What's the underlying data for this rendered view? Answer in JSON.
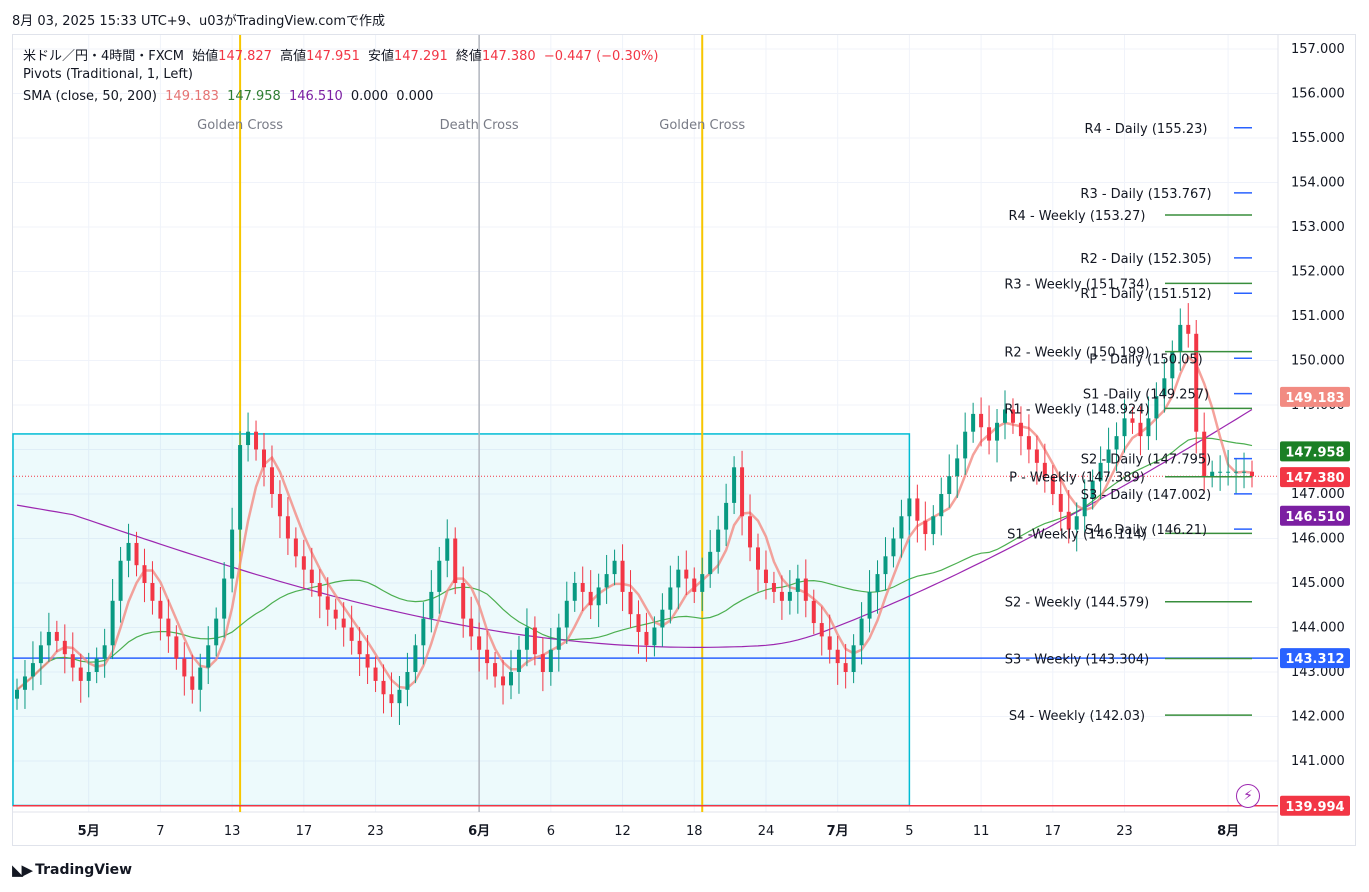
{
  "header": {
    "title": "8月 03, 2025 15:33 UTC+9、u03がTradingView.comで作成"
  },
  "legend": {
    "symbol": "米ドル／円・4時間・FXCM",
    "open_label": "始値",
    "open": "147.827",
    "high_label": "高値",
    "high": "147.951",
    "low_label": "安値",
    "low": "147.291",
    "close_label": "終値",
    "close": "147.380",
    "change": "−0.447 (−0.30%)",
    "pivots": "Pivots (Traditional, 1, Left)",
    "sma_label": "SMA (close, 50, 200)",
    "sma_vals": [
      "149.183",
      "147.958",
      "146.510",
      "0.000",
      "0.000"
    ]
  },
  "footer": {
    "logo": "TradingView"
  },
  "colors": {
    "up": "#089981",
    "down": "#f23645",
    "sma_fast": "#f28b82",
    "sma_mid": "#4caf50",
    "sma_slow": "#9c27b0",
    "daily_pivot": "#2962ff",
    "weekly_pivot": "#388e3c",
    "golden": "#f7c600",
    "death": "#b2b5be",
    "rect": "#00bcd4",
    "hline": "#2962ff",
    "bottom_line": "#f23645"
  },
  "chart_data": {
    "type": "candlestick",
    "ylim": [
      139.8,
      157.3
    ],
    "y_ticks": [
      "157.000",
      "156.000",
      "155.000",
      "154.000",
      "153.000",
      "152.000",
      "151.000",
      "150.000",
      "149.000",
      "148.000",
      "147.000",
      "146.000",
      "145.000",
      "144.000",
      "143.000",
      "142.000",
      "141.000"
    ],
    "x_ticks": [
      {
        "label": "5月",
        "bar": 9,
        "bold": true
      },
      {
        "label": "7",
        "bar": 18
      },
      {
        "label": "13",
        "bar": 27
      },
      {
        "label": "17",
        "bar": 36
      },
      {
        "label": "23",
        "bar": 45
      },
      {
        "label": "6月",
        "bar": 58,
        "bold": true
      },
      {
        "label": "6",
        "bar": 67
      },
      {
        "label": "12",
        "bar": 76
      },
      {
        "label": "18",
        "bar": 85
      },
      {
        "label": "24",
        "bar": 94
      },
      {
        "label": "7月",
        "bar": 103,
        "bold": true
      },
      {
        "label": "5",
        "bar": 112
      },
      {
        "label": "11",
        "bar": 121
      },
      {
        "label": "17",
        "bar": 130
      },
      {
        "label": "23",
        "bar": 139
      },
      {
        "label": "8月",
        "bar": 152,
        "bold": true
      }
    ],
    "bars": 156,
    "closes": [
      142.6,
      142.9,
      143.2,
      143.6,
      143.9,
      143.7,
      143.4,
      143.1,
      142.8,
      143.0,
      143.3,
      143.6,
      144.6,
      145.5,
      145.9,
      145.4,
      145.0,
      144.6,
      144.2,
      143.8,
      143.3,
      142.9,
      142.6,
      143.1,
      143.6,
      144.2,
      145.1,
      146.2,
      148.1,
      148.4,
      148.0,
      147.6,
      147.0,
      146.5,
      146.0,
      145.6,
      145.3,
      145.0,
      144.7,
      144.4,
      144.2,
      144.0,
      143.7,
      143.4,
      143.1,
      142.8,
      142.5,
      142.3,
      142.6,
      143.0,
      143.6,
      144.2,
      144.8,
      145.5,
      146.0,
      145.0,
      144.2,
      143.8,
      143.5,
      143.2,
      142.9,
      142.7,
      143.0,
      143.5,
      144.0,
      143.4,
      143.0,
      143.5,
      144.0,
      144.6,
      145.0,
      144.8,
      144.5,
      144.9,
      145.2,
      145.5,
      144.8,
      144.3,
      143.9,
      143.6,
      144.0,
      144.4,
      144.9,
      145.3,
      145.1,
      144.8,
      145.2,
      145.7,
      146.2,
      146.8,
      147.6,
      146.5,
      145.8,
      145.3,
      145.0,
      144.8,
      144.6,
      144.8,
      145.1,
      144.6,
      144.1,
      143.8,
      143.5,
      143.2,
      143.0,
      143.6,
      144.2,
      144.8,
      145.2,
      145.6,
      146.0,
      146.5,
      146.9,
      146.4,
      146.1,
      146.5,
      147.0,
      147.4,
      147.8,
      148.4,
      148.8,
      148.5,
      148.2,
      148.6,
      148.9,
      148.6,
      148.3,
      148.0,
      147.7,
      147.4,
      147.0,
      146.6,
      146.2,
      146.5,
      146.9,
      147.3,
      147.7,
      148.0,
      148.3,
      148.7,
      148.6,
      148.3,
      148.7,
      149.2,
      149.6,
      150.2,
      150.8,
      150.6,
      148.4,
      147.4,
      147.5,
      147.5,
      147.5,
      147.5,
      147.5,
      147.4
    ],
    "sma_fast_last": 149.183,
    "sma_mid_last": 147.958,
    "sma_slow_last": 146.51,
    "daily_pivots": [
      {
        "label": "R4 - Daily (155.23)",
        "value": 155.23
      },
      {
        "label": "R3 - Daily (153.767)",
        "value": 153.767
      },
      {
        "label": "R2 - Daily (152.305)",
        "value": 152.305
      },
      {
        "label": "R1 - Daily (151.512)",
        "value": 151.512
      },
      {
        "label": "P - Daily (150.05)",
        "value": 150.05
      },
      {
        "label": "S1 -Daily (149.257)",
        "value": 149.257
      },
      {
        "label": "S2 - Daily (147.795)",
        "value": 147.795
      },
      {
        "label": "S3 - Daily (147.002)",
        "value": 147.002
      },
      {
        "label": "S4 - Daily (146.21)",
        "value": 146.21
      }
    ],
    "weekly_pivots": [
      {
        "label": "R4 - Weekly (153.27)",
        "value": 153.27
      },
      {
        "label": "R3 - Weekly (151.734)",
        "value": 151.734
      },
      {
        "label": "R2 - Weekly (150.199)",
        "value": 150.199
      },
      {
        "label": "R1 - Weekly (148.924)",
        "value": 148.924
      },
      {
        "label": "P - Weekly (147.389)",
        "value": 147.389
      },
      {
        "label": "S1 -Weekly (146.114)",
        "value": 146.114
      },
      {
        "label": "S2 - Weekly (144.579)",
        "value": 144.579
      },
      {
        "label": "S3 - Weekly (143.304)",
        "value": 143.304
      },
      {
        "label": "S4 - Weekly (142.03)",
        "value": 142.03
      }
    ],
    "cross_events": [
      {
        "label": "Golden Cross",
        "bar": 28,
        "kind": "golden"
      },
      {
        "label": "Death Cross",
        "bar": 58,
        "kind": "death"
      },
      {
        "label": "Golden Cross",
        "bar": 86,
        "kind": "golden"
      }
    ],
    "rectangle": {
      "bar_start": 0,
      "bar_end": 112,
      "top": 148.35,
      "bottom": 140.0
    },
    "horizontal_line": 143.312,
    "bottom_line": 139.994,
    "price_tags": [
      {
        "text": "149.183",
        "value": 149.183,
        "bg": "#f28b82"
      },
      {
        "text": "147.958",
        "value": 147.958,
        "bg": "#1b7f25"
      },
      {
        "text": "147.380",
        "value": 147.38,
        "bg": "#f23645"
      },
      {
        "text": "146.510",
        "value": 146.51,
        "bg": "#7b1fa2"
      },
      {
        "text": "143.312",
        "value": 143.312,
        "bg": "#2962ff"
      },
      {
        "text": "139.994",
        "value": 139.994,
        "bg": "#f23645"
      }
    ]
  }
}
